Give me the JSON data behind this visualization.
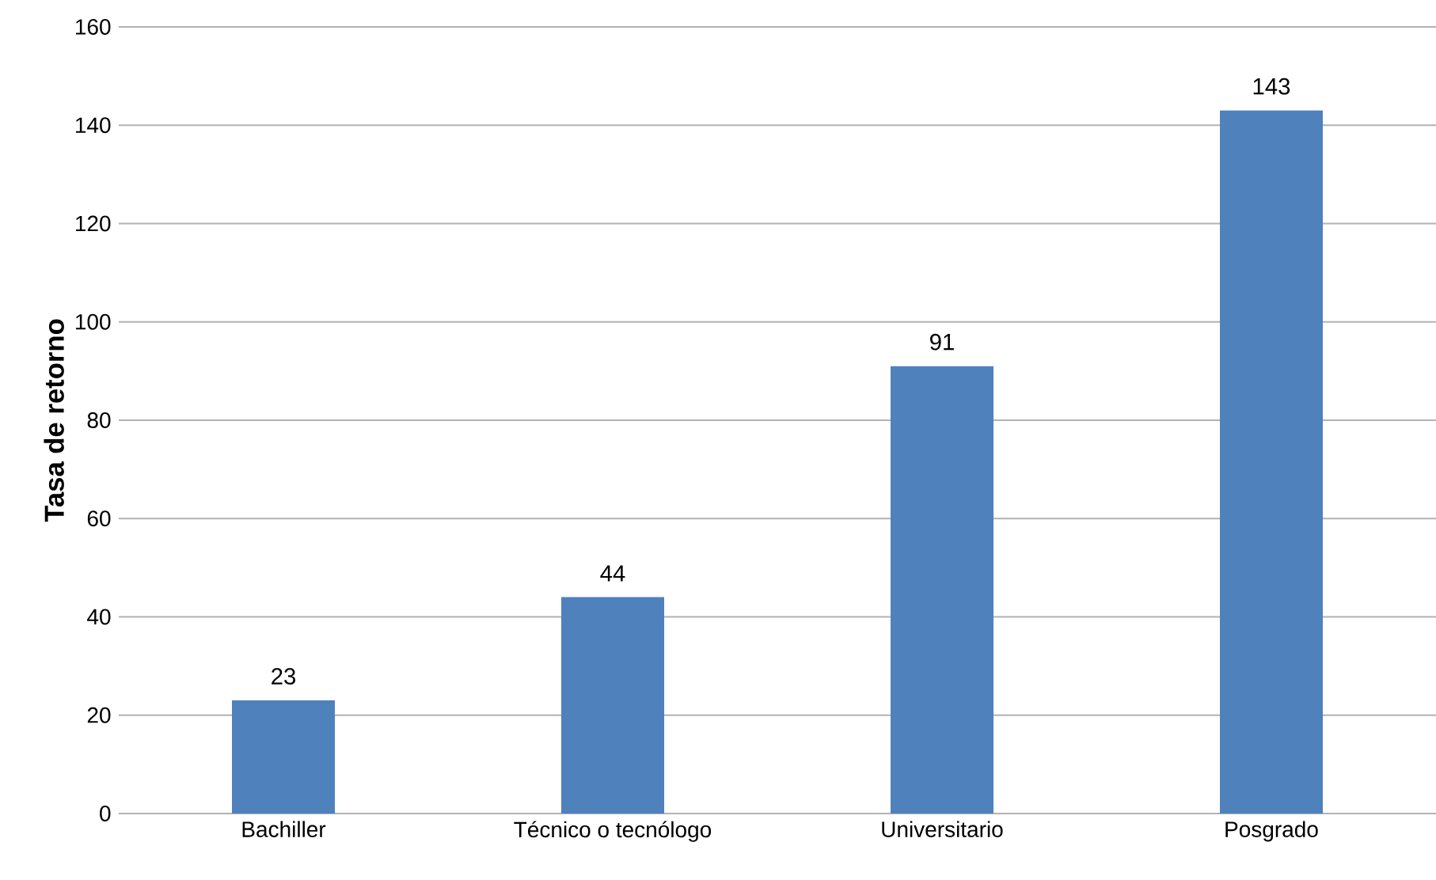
{
  "chart_data": {
    "type": "bar",
    "ylabel": "Tasa de retorno",
    "categories": [
      "Bachiller",
      "Técnico o tecnólogo",
      "Universitario",
      "Posgrado"
    ],
    "values": [
      23,
      44,
      91,
      143
    ],
    "color": "#4f81bd",
    "ylim": [
      0,
      160
    ],
    "yticks": [
      0,
      20,
      40,
      60,
      80,
      100,
      120,
      140,
      160
    ],
    "grid": "y",
    "data_labels": true
  }
}
